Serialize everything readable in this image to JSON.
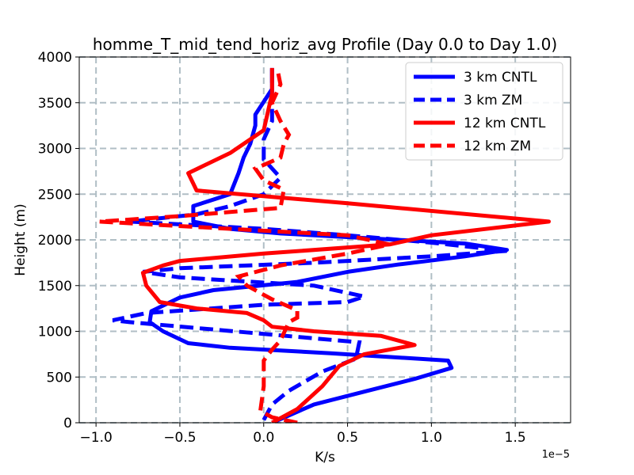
{
  "chart_data": {
    "type": "line",
    "title": "homme_T_mid_tend_horiz_avg Profile (Day 0.0 to Day 1.0)",
    "xlabel": "K/s",
    "ylabel": "Height (m)",
    "x_offset_label": "1e−5",
    "xlim": [
      -1.1,
      1.83
    ],
    "ylim": [
      0,
      4000
    ],
    "x_ticks": [
      -1.0,
      -0.5,
      0.0,
      0.5,
      1.0,
      1.5
    ],
    "x_tick_labels": [
      "−1.0",
      "−0.5",
      "0.0",
      "0.5",
      "1.0",
      "1.5"
    ],
    "y_ticks": [
      0,
      500,
      1000,
      1500,
      2000,
      2500,
      3000,
      3500,
      4000
    ],
    "y_tick_labels": [
      "0",
      "500",
      "1000",
      "1500",
      "2000",
      "2500",
      "3000",
      "3500",
      "4000"
    ],
    "grid": true,
    "legend_position": "top-right",
    "series": [
      {
        "name": "3 km CNTL",
        "color": "#0000ff",
        "style": "solid",
        "points": [
          [
            0.05,
            0
          ],
          [
            0.1,
            40
          ],
          [
            0.3,
            200
          ],
          [
            0.6,
            340
          ],
          [
            0.9,
            480
          ],
          [
            1.12,
            600
          ],
          [
            1.1,
            680
          ],
          [
            0.4,
            760
          ],
          [
            -0.2,
            820
          ],
          [
            -0.45,
            870
          ],
          [
            -0.6,
            1000
          ],
          [
            -0.68,
            1100
          ],
          [
            -0.67,
            1220
          ],
          [
            -0.5,
            1370
          ],
          [
            -0.3,
            1450
          ],
          [
            0.2,
            1540
          ],
          [
            0.5,
            1650
          ],
          [
            0.8,
            1730
          ],
          [
            1.2,
            1820
          ],
          [
            1.45,
            1890
          ],
          [
            1.2,
            1960
          ],
          [
            0.5,
            2030
          ],
          [
            0.1,
            2070
          ],
          [
            -0.2,
            2120
          ],
          [
            -0.42,
            2200
          ],
          [
            -0.42,
            2370
          ],
          [
            -0.2,
            2500
          ],
          [
            -0.15,
            2730
          ],
          [
            -0.12,
            2900
          ],
          [
            -0.08,
            3050
          ],
          [
            -0.05,
            3250
          ],
          [
            -0.05,
            3370
          ],
          [
            0.05,
            3650
          ],
          [
            0.05,
            3880
          ]
        ]
      },
      {
        "name": "3 km ZM",
        "color": "#0000ff",
        "style": "dashed",
        "points": [
          [
            0.0,
            30
          ],
          [
            0.05,
            200
          ],
          [
            0.15,
            350
          ],
          [
            0.35,
            560
          ],
          [
            0.55,
            700
          ],
          [
            0.57,
            880
          ],
          [
            -0.8,
            1100
          ],
          [
            -0.9,
            1120
          ],
          [
            -0.7,
            1200
          ],
          [
            0.0,
            1290
          ],
          [
            0.5,
            1320
          ],
          [
            0.6,
            1380
          ],
          [
            0.3,
            1500
          ],
          [
            -0.5,
            1590
          ],
          [
            -0.72,
            1650
          ],
          [
            -0.5,
            1690
          ],
          [
            0.3,
            1750
          ],
          [
            1.0,
            1820
          ],
          [
            1.45,
            1880
          ],
          [
            1.0,
            1970
          ],
          [
            0.5,
            2050
          ],
          [
            0.0,
            2120
          ],
          [
            -0.8,
            2200
          ],
          [
            -0.4,
            2280
          ],
          [
            -0.2,
            2370
          ],
          [
            0.0,
            2500
          ],
          [
            0.1,
            2680
          ],
          [
            0.0,
            2880
          ],
          [
            0.0,
            3100
          ],
          [
            0.05,
            3300
          ],
          [
            0.05,
            3500
          ],
          [
            0.05,
            3750
          ],
          [
            0.05,
            3880
          ]
        ]
      },
      {
        "name": "12 km CNTL",
        "color": "#ff0000",
        "style": "solid",
        "points": [
          [
            0.05,
            0
          ],
          [
            0.2,
            150
          ],
          [
            0.35,
            400
          ],
          [
            0.45,
            620
          ],
          [
            0.6,
            750
          ],
          [
            0.9,
            850
          ],
          [
            0.7,
            950
          ],
          [
            0.3,
            1000
          ],
          [
            0.05,
            1050
          ],
          [
            0.0,
            1120
          ],
          [
            -0.1,
            1200
          ],
          [
            -0.4,
            1250
          ],
          [
            -0.62,
            1320
          ],
          [
            -0.7,
            1500
          ],
          [
            -0.72,
            1640
          ],
          [
            -0.6,
            1720
          ],
          [
            -0.5,
            1770
          ],
          [
            0.0,
            1850
          ],
          [
            0.75,
            1950
          ],
          [
            1.0,
            2050
          ],
          [
            1.7,
            2200
          ],
          [
            0.5,
            2400
          ],
          [
            -0.4,
            2540
          ],
          [
            -0.45,
            2730
          ],
          [
            -0.2,
            2950
          ],
          [
            0.0,
            3200
          ],
          [
            0.05,
            3600
          ],
          [
            0.05,
            3880
          ]
        ]
      },
      {
        "name": "12 km ZM",
        "color": "#ff0000",
        "style": "dashed",
        "points": [
          [
            0.2,
            0
          ],
          [
            0.05,
            60
          ],
          [
            -0.02,
            130
          ],
          [
            0.0,
            400
          ],
          [
            0.0,
            680
          ],
          [
            0.05,
            800
          ],
          [
            0.1,
            900
          ],
          [
            0.15,
            1100
          ],
          [
            0.2,
            1150
          ],
          [
            0.2,
            1230
          ],
          [
            0.05,
            1350
          ],
          [
            -0.1,
            1500
          ],
          [
            -0.15,
            1600
          ],
          [
            0.1,
            1720
          ],
          [
            0.5,
            1850
          ],
          [
            0.75,
            1950
          ],
          [
            0.5,
            2050
          ],
          [
            0.0,
            2100
          ],
          [
            -0.98,
            2200
          ],
          [
            -0.5,
            2260
          ],
          [
            0.1,
            2350
          ],
          [
            0.12,
            2550
          ],
          [
            0.0,
            2650
          ],
          [
            -0.05,
            2780
          ],
          [
            0.1,
            2900
          ],
          [
            0.12,
            3050
          ],
          [
            0.15,
            3150
          ],
          [
            0.1,
            3300
          ],
          [
            0.05,
            3500
          ],
          [
            0.1,
            3700
          ],
          [
            0.08,
            3880
          ]
        ]
      }
    ]
  }
}
